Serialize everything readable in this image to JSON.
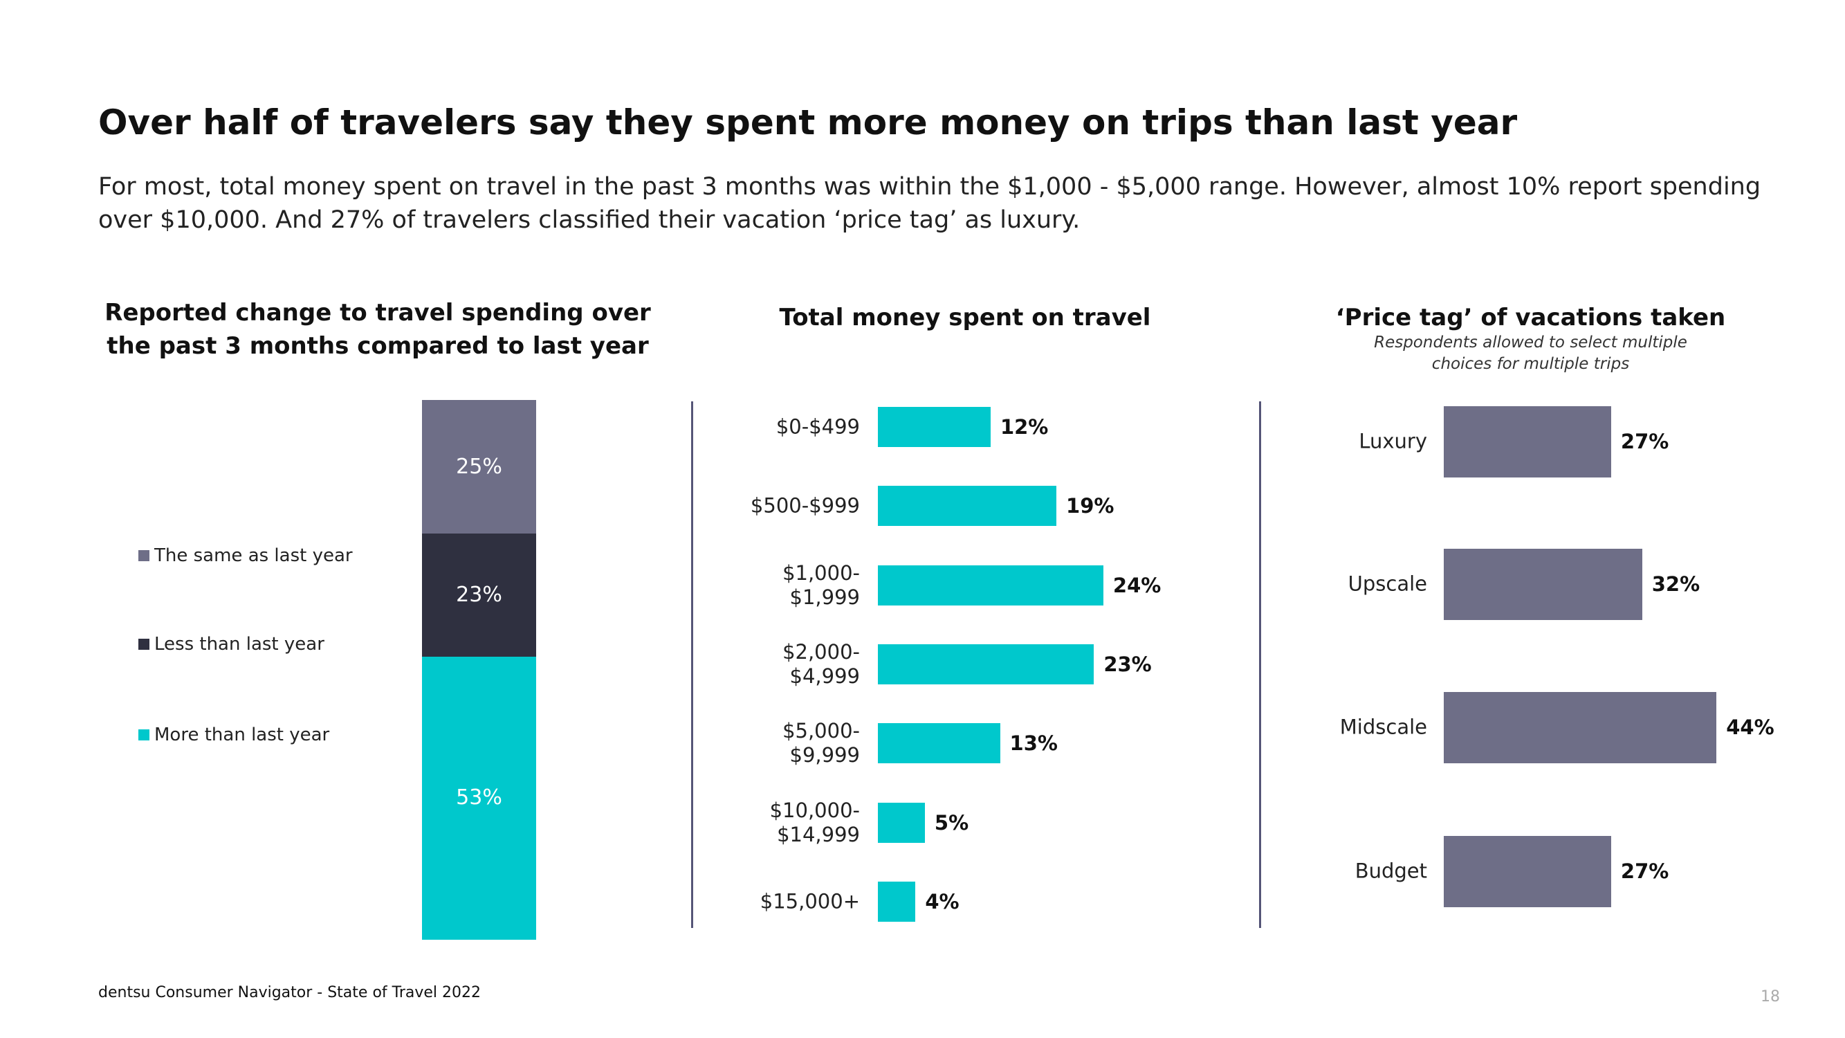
{
  "header": {
    "title": "Over half of travelers say they spent more money on trips than last year",
    "subtitle": "For most, total money spent on travel in the past 3 months was within the $1,000 - $5,000 range. However, almost 10% report spending over $10,000. And 27% of travelers classified their vacation ‘price tag’ as luxury."
  },
  "chart_data": [
    {
      "type": "stacked_bar",
      "title": "Reported change to travel spending over the past 3 months compared to last year",
      "series": [
        {
          "name": "The same as last year",
          "color": "#6e6e87",
          "values": [
            25
          ],
          "value_labels": [
            "25%"
          ]
        },
        {
          "name": "Less than last year",
          "color": "#2f3040",
          "values": [
            23
          ],
          "value_labels": [
            "23%"
          ]
        },
        {
          "name": "More than last year",
          "color": "#00c8cc",
          "values": [
            53
          ],
          "value_labels": [
            "53%"
          ]
        }
      ]
    },
    {
      "type": "hbar",
      "title": "Total money spent on travel",
      "color": "#00c8cc",
      "categories": [
        "$0-$499",
        "$500-$999",
        "$1,000-\n$1,999",
        "$2,000-\n$4,999",
        "$5,000-\n$9,999",
        "$10,000-\n$14,999",
        "$15,000+"
      ],
      "values": [
        12,
        19,
        24,
        23,
        13,
        5,
        4
      ],
      "value_labels": [
        "12%",
        "19%",
        "24%",
        "23%",
        "13%",
        "5%",
        "4%"
      ]
    },
    {
      "type": "hbar",
      "title": "‘Price tag’ of vacations taken",
      "subtitle": "Respondents allowed to select multiple choices for multiple trips",
      "color": "#6e6e87",
      "categories": [
        "Luxury",
        "Upscale",
        "Midscale",
        "Budget"
      ],
      "values": [
        27,
        32,
        44,
        27
      ],
      "value_labels": [
        "27%",
        "32%",
        "44%",
        "27%"
      ]
    }
  ],
  "footer": {
    "source": "dentsu Consumer Navigator - State of Travel 2022",
    "page": "18"
  }
}
